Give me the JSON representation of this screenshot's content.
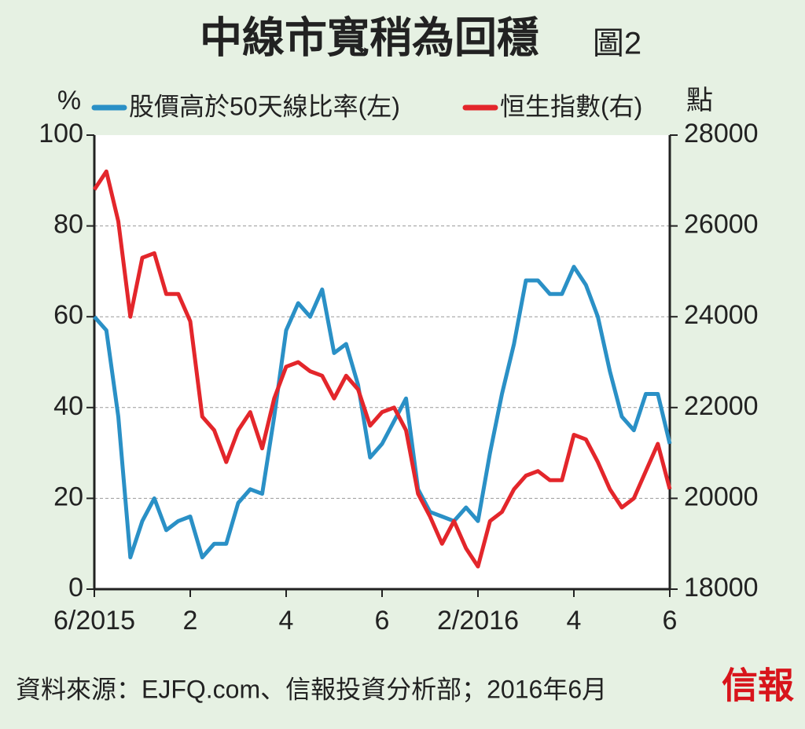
{
  "chart_data": {
    "type": "line",
    "title": "中線市寬稍為回穩",
    "subtitle": "圖2",
    "y_label": "%",
    "y2_label": "點",
    "source": "資料來源：EJFQ.com、信報投資分析部；2016年6月",
    "logo": "信報",
    "x": [
      0,
      0.25,
      0.5,
      0.75,
      1,
      1.25,
      1.5,
      1.75,
      2,
      2.25,
      2.5,
      2.75,
      3,
      3.25,
      3.5,
      3.75,
      4,
      4.25,
      4.5,
      4.75,
      5,
      5.25,
      5.5,
      5.75,
      6,
      6.25,
      6.5,
      6.75,
      7,
      7.25,
      7.5,
      7.75,
      8,
      8.25,
      8.5,
      8.75,
      9,
      9.25,
      9.5,
      9.75,
      10,
      10.25,
      10.5,
      10.75,
      11,
      11.25,
      11.5,
      11.75,
      12
    ],
    "xlim": [
      0,
      12
    ],
    "xticks": [
      {
        "value": 0,
        "label": "6/2015"
      },
      2,
      4,
      6,
      {
        "value": 8,
        "label": "2/2016"
      },
      {
        "value": 10,
        "label": "4"
      },
      {
        "value": 12,
        "label": "6"
      }
    ],
    "ylim": [
      0,
      100
    ],
    "yticks": [
      0,
      20,
      40,
      60,
      80,
      100
    ],
    "y2lim": [
      18000,
      28000
    ],
    "y2ticks": [
      18000,
      20000,
      22000,
      24000,
      26000,
      28000
    ],
    "grid": true,
    "series": [
      {
        "name": "股價高於50天線比率(左)",
        "color": "#2a90c6",
        "axis": "y",
        "values": [
          60,
          57,
          38,
          7,
          15,
          20,
          13,
          15,
          16,
          7,
          10,
          10,
          19,
          22,
          21,
          38,
          57,
          63,
          60,
          66,
          52,
          54,
          45,
          29,
          32,
          37,
          42,
          22,
          17,
          16,
          15,
          18,
          15,
          30,
          43,
          54,
          68,
          68,
          65,
          65,
          71,
          67,
          60,
          48,
          38,
          35,
          43,
          43,
          32
        ]
      },
      {
        "name": "恒生指數(右)",
        "color": "#e3262b",
        "axis": "y2",
        "values": [
          26800,
          27200,
          26100,
          24000,
          25300,
          25400,
          24500,
          24500,
          23900,
          21800,
          21500,
          20800,
          21500,
          21900,
          21100,
          22200,
          22900,
          23000,
          22800,
          22700,
          22200,
          22700,
          22400,
          21600,
          21900,
          22000,
          21500,
          20100,
          19600,
          19000,
          19500,
          18900,
          18500,
          19500,
          19700,
          20200,
          20500,
          20600,
          20400,
          20400,
          21400,
          21300,
          20800,
          20200,
          19800,
          20000,
          20600,
          21200,
          20200
        ]
      }
    ]
  }
}
